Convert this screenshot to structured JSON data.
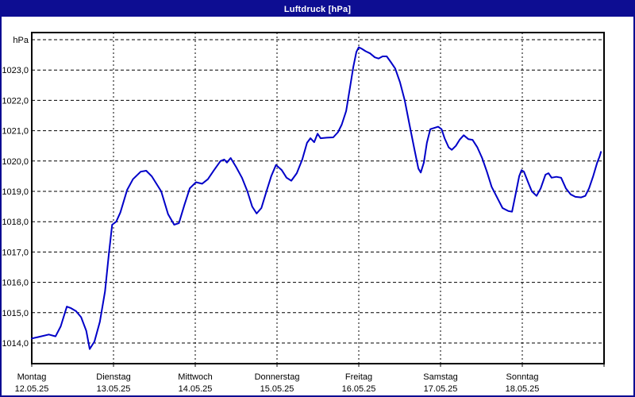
{
  "window": {
    "title": "Luftdruck [hPa]"
  },
  "colors": {
    "window_frame": "#0D0D92",
    "titlebar_text": "#FFFFFF",
    "plot_border": "#000000",
    "gridline": "#000000",
    "label_text": "#000000",
    "background": "#FFFFFF",
    "line": "#0000C8"
  },
  "chart_data": {
    "type": "line",
    "title": "Luftdruck [hPa]",
    "ylabel": "hPa",
    "xlabel": "",
    "grid": "dashed, 1 hPa horizontal steps, daily vertical lines",
    "legend_position": "none",
    "ylim": [
      1013.3,
      1024.25
    ],
    "y_axis": {
      "unit": "hPa",
      "ticks": [
        {
          "label": "1014,0",
          "value": 1014
        },
        {
          "label": "1015,0",
          "value": 1015
        },
        {
          "label": "1016,0",
          "value": 1016
        },
        {
          "label": "1017,0",
          "value": 1017
        },
        {
          "label": "1018,0",
          "value": 1018
        },
        {
          "label": "1019,0",
          "value": 1019
        },
        {
          "label": "1020,0",
          "value": 1020
        },
        {
          "label": "1021,0",
          "value": 1021
        },
        {
          "label": "1022,0",
          "value": 1022
        },
        {
          "label": "1023,0",
          "value": 1023
        },
        {
          "label": "hPa",
          "value": 1024
        }
      ]
    },
    "x_axis": {
      "hours_total": 168,
      "days": [
        {
          "name": "Montag",
          "date": "12.05.25"
        },
        {
          "name": "Dienstag",
          "date": "13.05.25"
        },
        {
          "name": "Mittwoch",
          "date": "14.05.25"
        },
        {
          "name": "Donnerstag",
          "date": "15.05.25"
        },
        {
          "name": "Freitag",
          "date": "16.05.25"
        },
        {
          "name": "Samstag",
          "date": "17.05.25"
        },
        {
          "name": "Sonntag",
          "date": "18.05.25"
        }
      ]
    },
    "series": [
      {
        "name": "Luftdruck",
        "color": "#0000C8",
        "points": [
          [
            0,
            1014.15
          ],
          [
            2,
            1014.2
          ],
          [
            5,
            1014.28
          ],
          [
            7,
            1014.22
          ],
          [
            8.5,
            1014.55
          ],
          [
            10.3,
            1015.2
          ],
          [
            11.5,
            1015.15
          ],
          [
            13,
            1015.05
          ],
          [
            14.5,
            1014.85
          ],
          [
            16,
            1014.4
          ],
          [
            17,
            1013.8
          ],
          [
            18.4,
            1014.05
          ],
          [
            20,
            1014.7
          ],
          [
            21.5,
            1015.7
          ],
          [
            22.6,
            1016.9
          ],
          [
            23.6,
            1017.9
          ],
          [
            24.8,
            1018.0
          ],
          [
            26,
            1018.3
          ],
          [
            28,
            1019.05
          ],
          [
            29.7,
            1019.4
          ],
          [
            32,
            1019.65
          ],
          [
            33.6,
            1019.68
          ],
          [
            35.2,
            1019.5
          ],
          [
            38,
            1019.0
          ],
          [
            40,
            1018.25
          ],
          [
            41.8,
            1017.9
          ],
          [
            43.2,
            1017.95
          ],
          [
            44.8,
            1018.55
          ],
          [
            46.4,
            1019.1
          ],
          [
            48.2,
            1019.3
          ],
          [
            50,
            1019.25
          ],
          [
            51.7,
            1019.4
          ],
          [
            53.5,
            1019.7
          ],
          [
            55.4,
            1020.0
          ],
          [
            56.5,
            1020.05
          ],
          [
            57.3,
            1019.95
          ],
          [
            58.4,
            1020.1
          ],
          [
            60,
            1019.8
          ],
          [
            61.7,
            1019.45
          ],
          [
            63.3,
            1019.0
          ],
          [
            64.7,
            1018.5
          ],
          [
            66,
            1018.27
          ],
          [
            67.4,
            1018.45
          ],
          [
            68.9,
            1019.0
          ],
          [
            70.3,
            1019.5
          ],
          [
            71.7,
            1019.87
          ],
          [
            73.4,
            1019.7
          ],
          [
            74.8,
            1019.45
          ],
          [
            76.2,
            1019.35
          ],
          [
            77.8,
            1019.6
          ],
          [
            79.4,
            1020.05
          ],
          [
            80.8,
            1020.6
          ],
          [
            81.8,
            1020.75
          ],
          [
            82.9,
            1020.62
          ],
          [
            83.9,
            1020.9
          ],
          [
            84.8,
            1020.75
          ],
          [
            86.6,
            1020.77
          ],
          [
            88.5,
            1020.78
          ],
          [
            89.9,
            1020.95
          ],
          [
            91,
            1021.2
          ],
          [
            92.3,
            1021.65
          ],
          [
            93.4,
            1022.4
          ],
          [
            94.4,
            1023.1
          ],
          [
            95.3,
            1023.6
          ],
          [
            96,
            1023.75
          ],
          [
            96.9,
            1023.7
          ],
          [
            98,
            1023.62
          ],
          [
            99.3,
            1023.55
          ],
          [
            100.7,
            1023.42
          ],
          [
            101.8,
            1023.38
          ],
          [
            103,
            1023.45
          ],
          [
            104.2,
            1023.45
          ],
          [
            105.3,
            1023.28
          ],
          [
            106.7,
            1023.05
          ],
          [
            108.1,
            1022.6
          ],
          [
            109.5,
            1022.0
          ],
          [
            110.9,
            1021.2
          ],
          [
            112.3,
            1020.4
          ],
          [
            113.5,
            1019.75
          ],
          [
            114.2,
            1019.62
          ],
          [
            115.1,
            1019.95
          ],
          [
            116,
            1020.6
          ],
          [
            117,
            1021.05
          ],
          [
            118.4,
            1021.1
          ],
          [
            119.3,
            1021.13
          ],
          [
            120.3,
            1021.05
          ],
          [
            121.2,
            1020.75
          ],
          [
            122.4,
            1020.45
          ],
          [
            123.3,
            1020.37
          ],
          [
            124.5,
            1020.5
          ],
          [
            125.6,
            1020.7
          ],
          [
            126.8,
            1020.85
          ],
          [
            128.2,
            1020.72
          ],
          [
            129.4,
            1020.7
          ],
          [
            130.8,
            1020.45
          ],
          [
            132.2,
            1020.1
          ],
          [
            133.6,
            1019.65
          ],
          [
            135,
            1019.15
          ],
          [
            136.6,
            1018.8
          ],
          [
            138.2,
            1018.45
          ],
          [
            139.9,
            1018.35
          ],
          [
            141,
            1018.33
          ],
          [
            142.2,
            1019.0
          ],
          [
            143.1,
            1019.5
          ],
          [
            143.8,
            1019.7
          ],
          [
            144.5,
            1019.65
          ],
          [
            145.7,
            1019.3
          ],
          [
            146.8,
            1019.0
          ],
          [
            148.2,
            1018.85
          ],
          [
            149.4,
            1019.1
          ],
          [
            150.8,
            1019.55
          ],
          [
            151.7,
            1019.6
          ],
          [
            152.6,
            1019.45
          ],
          [
            154,
            1019.48
          ],
          [
            155.4,
            1019.45
          ],
          [
            156.8,
            1019.1
          ],
          [
            158.2,
            1018.9
          ],
          [
            159.6,
            1018.82
          ],
          [
            161.3,
            1018.8
          ],
          [
            162.5,
            1018.85
          ],
          [
            163.6,
            1019.1
          ],
          [
            164.8,
            1019.5
          ],
          [
            166,
            1019.95
          ],
          [
            166.7,
            1020.15
          ],
          [
            167.1,
            1020.3
          ]
        ]
      }
    ]
  }
}
